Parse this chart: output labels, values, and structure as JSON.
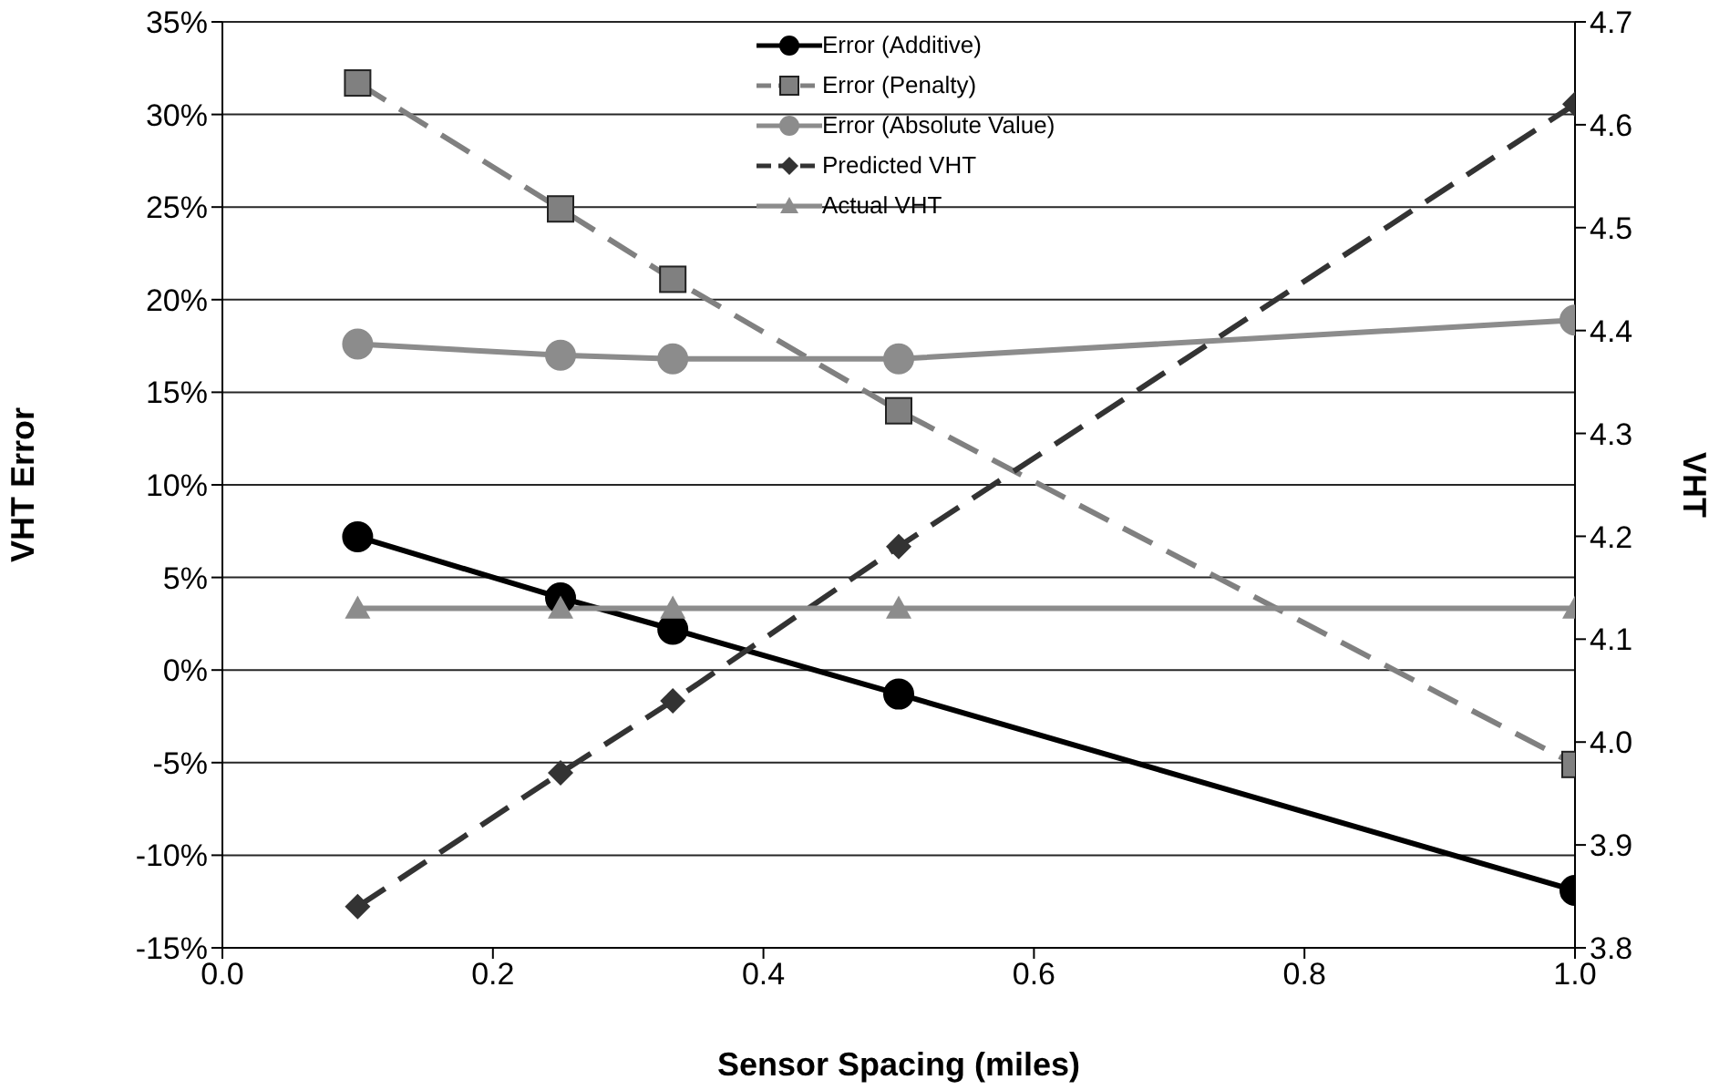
{
  "chart_data": {
    "type": "line",
    "xlabel": "Sensor Spacing (miles)",
    "ylabel": "VHT Error",
    "y2label": "VHT",
    "x": [
      0.1,
      0.25,
      0.333,
      0.5,
      1.0
    ],
    "series": [
      {
        "name": "Error (Additive)",
        "color": "#000000",
        "marker": "circle",
        "line_style": "solid",
        "values": [
          7.2,
          3.9,
          2.2,
          -1.3,
          -11.9
        ]
      },
      {
        "name": "Error (Penalty)",
        "color": "#808080",
        "marker": "square",
        "line_style": "dashed",
        "values": [
          31.7,
          24.9,
          21.1,
          14.0,
          -5.1
        ]
      },
      {
        "name": "Error (Absolute Value)",
        "color": "#8c8c8c",
        "marker": "circle",
        "line_style": "solid",
        "values": [
          17.6,
          17.0,
          16.8,
          16.8,
          18.9
        ]
      },
      {
        "name": "Predicted VHT",
        "color": "#333333",
        "marker": "diamond",
        "line_style": "dashed",
        "axis": "y2",
        "values": [
          3.84,
          3.97,
          4.04,
          4.19,
          4.62
        ]
      },
      {
        "name": "Actual VHT",
        "color": "#8c8c8c",
        "marker": "triangle",
        "line_style": "solid",
        "axis": "y2",
        "values": [
          4.13,
          4.13,
          4.13,
          4.13,
          4.13
        ]
      }
    ],
    "xlim": [
      0,
      1
    ],
    "xticks": [
      {
        "value": 0,
        "label": "0.0"
      },
      {
        "value": 0.2,
        "label": "0.2"
      },
      {
        "value": 0.4,
        "label": "0.4"
      },
      {
        "value": 0.6,
        "label": "0.6"
      },
      {
        "value": 0.8,
        "label": "0.8"
      },
      {
        "value": 1,
        "label": "1.0"
      }
    ],
    "ylim": [
      -15,
      35
    ],
    "yticks": [
      {
        "value": -15,
        "label": "-15%"
      },
      {
        "value": -10,
        "label": "-10%"
      },
      {
        "value": -5,
        "label": "-5%"
      },
      {
        "value": 0,
        "label": "0%"
      },
      {
        "value": 5,
        "label": "5%"
      },
      {
        "value": 10,
        "label": "10%"
      },
      {
        "value": 15,
        "label": "15%"
      },
      {
        "value": 20,
        "label": "20%"
      },
      {
        "value": 25,
        "label": "25%"
      },
      {
        "value": 30,
        "label": "30%"
      },
      {
        "value": 35,
        "label": "35%"
      }
    ],
    "y2lim": [
      3.8,
      4.7
    ],
    "y2ticks": [
      3.8,
      3.9,
      {
        "value": 4,
        "label": "4.0"
      },
      4.1,
      4.2,
      4.3,
      4.4,
      4.5,
      4.6,
      4.7
    ],
    "grid": "y",
    "legend": "top"
  }
}
